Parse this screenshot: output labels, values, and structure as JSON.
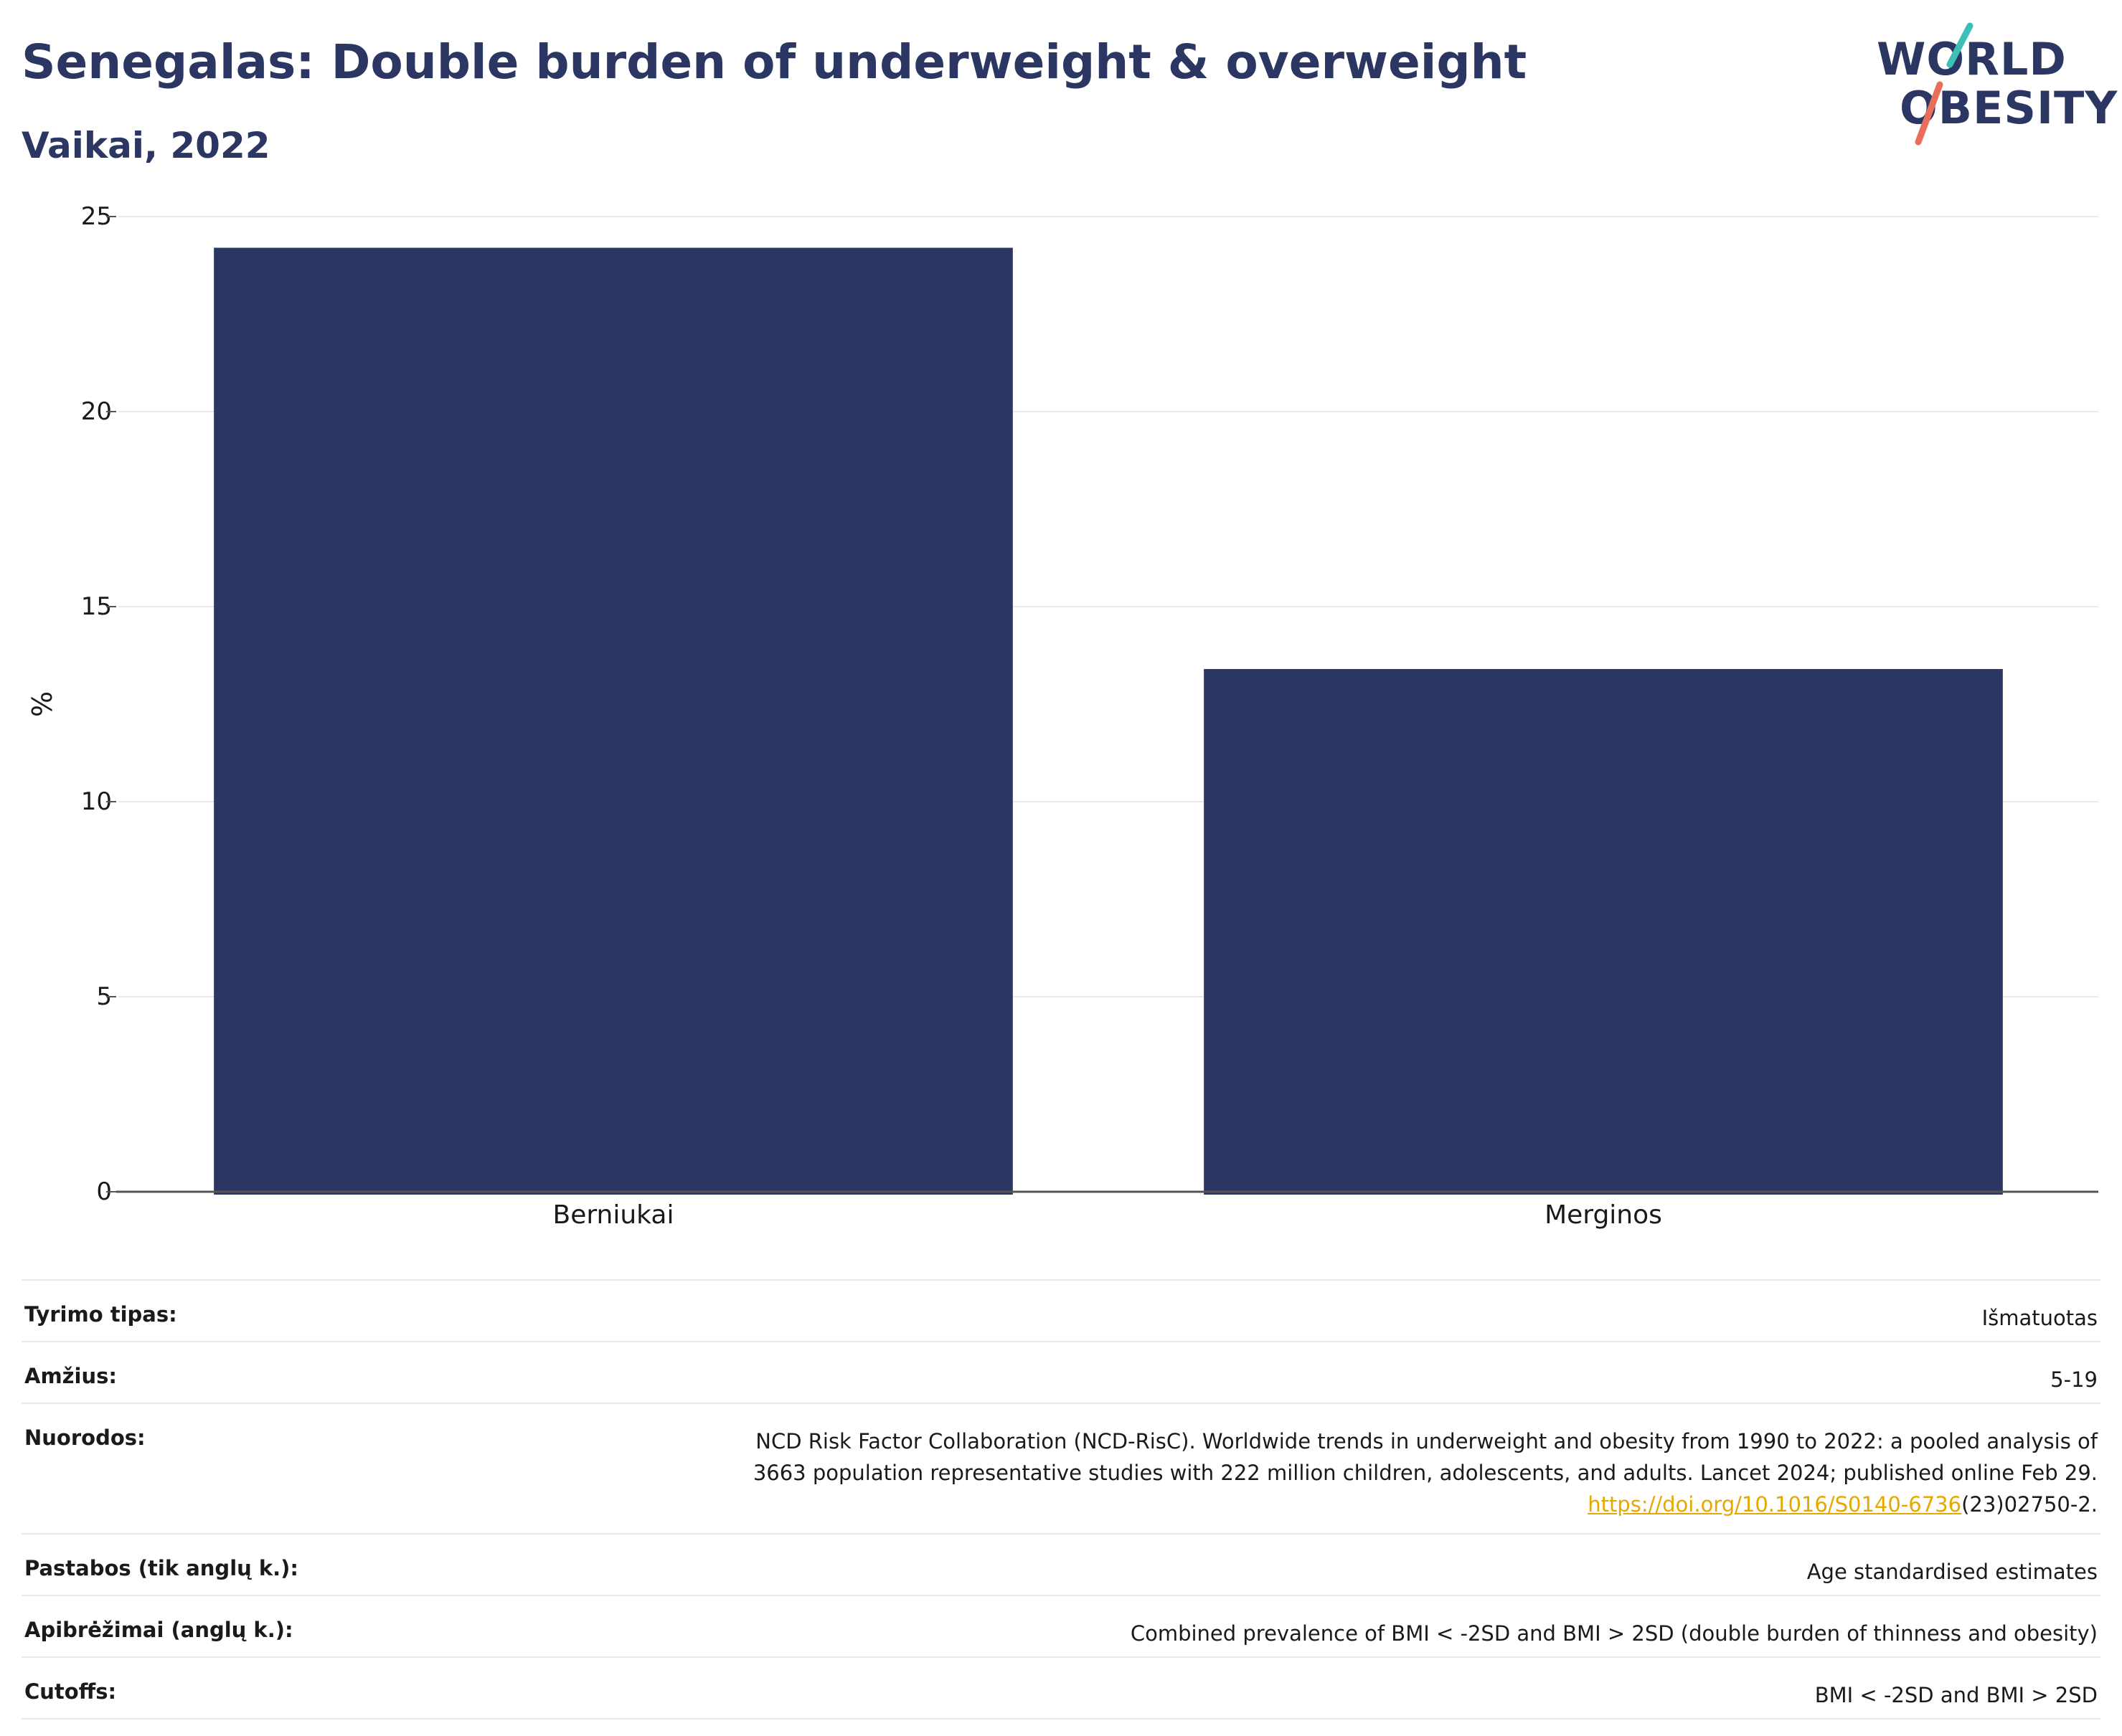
{
  "title": "Senegalas: Double burden of underweight & overweight",
  "subtitle": "Vaikai, 2022",
  "logo": {
    "line1": "WORLD",
    "line2": "OBESITY",
    "colors": {
      "text": "#2b3663",
      "slash_top": "#3dbfb8",
      "slash_bottom": "#e8705a"
    }
  },
  "chart_data": {
    "type": "bar",
    "categories": [
      "Berniukai",
      "Merginos"
    ],
    "values": [
      24.2,
      13.4
    ],
    "ylabel": "%",
    "ylim": [
      0,
      25
    ],
    "yticks": [
      0,
      5,
      10,
      15,
      20,
      25
    ],
    "grid": true,
    "bar_color": "#2b3663"
  },
  "info": [
    {
      "key": "Tyrimo tipas:",
      "value": "Išmatuotas"
    },
    {
      "key": "Amžius:",
      "value": "5-19"
    },
    {
      "key": "Nuorodos:",
      "value_lines": [
        "NCD Risk Factor Collaboration (NCD-RisC). Worldwide trends in underweight and obesity from 1990 to 2022: a pooled analysis of",
        "3663 population representative studies with 222 million children, adolescents, and adults. Lancet 2024; published online Feb 29."
      ],
      "link": "https://doi.org/10.1016/S0140-6736",
      "link_suffix": "(23)02750-2."
    },
    {
      "key": "Pastabos (tik anglų k.):",
      "value": "Age standardised estimates"
    },
    {
      "key": "Apibrėžimai (anglų k.):",
      "value": "Combined prevalence of BMI < -2SD and BMI > 2SD (double burden of thinness and obesity)"
    },
    {
      "key": "Cutoffs:",
      "value": "BMI < -2SD and BMI > 2SD"
    }
  ]
}
